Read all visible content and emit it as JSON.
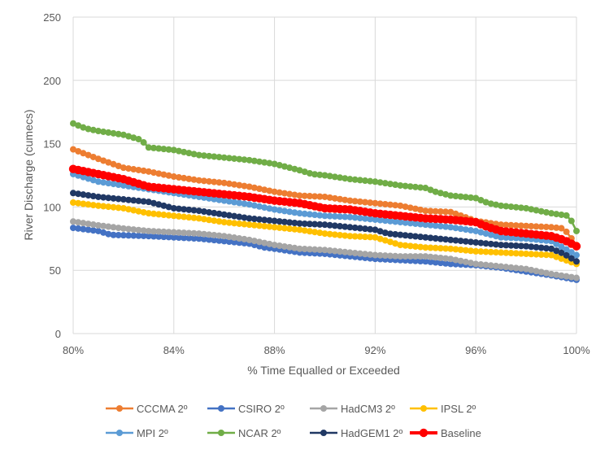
{
  "chart_data": {
    "type": "line",
    "title": "",
    "xlabel": "% Time Equalled or Exceeded",
    "ylabel": "River Discharge (cumecs)",
    "xlim": [
      80,
      100
    ],
    "ylim": [
      0,
      250
    ],
    "x_ticks": [
      80,
      84,
      88,
      92,
      96,
      100
    ],
    "x_tick_labels": [
      "80%",
      "84%",
      "88%",
      "92%",
      "96%",
      "100%"
    ],
    "y_ticks": [
      0,
      50,
      100,
      150,
      200,
      250
    ],
    "y_tick_labels": [
      "0",
      "50",
      "100",
      "150",
      "200",
      "250"
    ],
    "grid": true,
    "legend_position": "bottom",
    "points_per_series": 101,
    "series": [
      {
        "name": "CCCMA 2º",
        "color": "#ED7D31",
        "size": "normal",
        "anchors": [
          [
            80,
            145.5
          ],
          [
            81,
            138
          ],
          [
            82,
            131
          ],
          [
            83,
            128
          ],
          [
            84,
            124
          ],
          [
            85,
            121
          ],
          [
            86,
            119
          ],
          [
            87,
            116
          ],
          [
            88,
            112
          ],
          [
            89,
            109
          ],
          [
            90,
            108
          ],
          [
            91,
            105
          ],
          [
            92,
            103
          ],
          [
            93,
            101
          ],
          [
            94,
            97
          ],
          [
            95,
            96
          ],
          [
            96,
            89
          ],
          [
            97,
            86
          ],
          [
            98,
            85
          ],
          [
            99,
            84
          ],
          [
            99.5,
            83
          ],
          [
            100,
            70
          ]
        ]
      },
      {
        "name": "CSIRO 2º",
        "color": "#4472C4",
        "size": "normal",
        "anchors": [
          [
            80,
            83.5
          ],
          [
            81,
            81
          ],
          [
            81.5,
            78
          ],
          [
            83,
            77
          ],
          [
            84,
            76
          ],
          [
            85,
            75
          ],
          [
            86,
            73
          ],
          [
            87,
            71
          ],
          [
            87.6,
            68
          ],
          [
            88,
            67
          ],
          [
            89,
            64
          ],
          [
            90,
            63
          ],
          [
            91,
            61
          ],
          [
            92,
            59
          ],
          [
            93,
            58
          ],
          [
            94,
            57
          ],
          [
            95,
            55
          ],
          [
            96,
            54
          ],
          [
            97,
            52
          ],
          [
            98,
            49
          ],
          [
            99,
            46
          ],
          [
            100,
            42.5
          ]
        ]
      },
      {
        "name": "HadCM3 2º",
        "color": "#A5A5A5",
        "size": "normal",
        "anchors": [
          [
            80,
            88.5
          ],
          [
            81,
            85.5
          ],
          [
            82,
            83
          ],
          [
            83,
            81
          ],
          [
            84,
            80
          ],
          [
            85,
            79
          ],
          [
            86,
            77
          ],
          [
            87,
            74
          ],
          [
            88,
            70
          ],
          [
            89,
            67
          ],
          [
            90,
            66
          ],
          [
            91,
            64
          ],
          [
            92,
            62
          ],
          [
            93,
            61
          ],
          [
            94,
            61
          ],
          [
            95,
            59
          ],
          [
            96,
            55
          ],
          [
            97,
            53
          ],
          [
            98,
            51
          ],
          [
            99,
            47
          ],
          [
            100,
            44
          ]
        ]
      },
      {
        "name": "IPSL 2º",
        "color": "#FFC000",
        "size": "normal",
        "anchors": [
          [
            80,
            103.5
          ],
          [
            81,
            101
          ],
          [
            82,
            99
          ],
          [
            83,
            95
          ],
          [
            84,
            93
          ],
          [
            85,
            91
          ],
          [
            86,
            88
          ],
          [
            87,
            86
          ],
          [
            88,
            84
          ],
          [
            89,
            82
          ],
          [
            90,
            79
          ],
          [
            91,
            77
          ],
          [
            92,
            76
          ],
          [
            93,
            70
          ],
          [
            94,
            68
          ],
          [
            95,
            67
          ],
          [
            96,
            65
          ],
          [
            97,
            64
          ],
          [
            98,
            63
          ],
          [
            99,
            62
          ],
          [
            100,
            55
          ]
        ]
      },
      {
        "name": "MPI  2º",
        "color": "#5B9BD5",
        "size": "normal",
        "anchors": [
          [
            80,
            126
          ],
          [
            81,
            120
          ],
          [
            82,
            117
          ],
          [
            83,
            114
          ],
          [
            84,
            111
          ],
          [
            85,
            108
          ],
          [
            86,
            105
          ],
          [
            87,
            102
          ],
          [
            88,
            98
          ],
          [
            89,
            95
          ],
          [
            90,
            93
          ],
          [
            91,
            92
          ],
          [
            92,
            90
          ],
          [
            93,
            88
          ],
          [
            94,
            86
          ],
          [
            95,
            84
          ],
          [
            96,
            81
          ],
          [
            97,
            76
          ],
          [
            98,
            75
          ],
          [
            99,
            73
          ],
          [
            100,
            62
          ]
        ]
      },
      {
        "name": "NCAR 2º",
        "color": "#70AD47",
        "size": "normal",
        "anchors": [
          [
            80,
            166
          ],
          [
            80.5,
            162
          ],
          [
            81,
            160
          ],
          [
            82,
            157
          ],
          [
            82.7,
            153
          ],
          [
            83,
            147
          ],
          [
            84,
            145
          ],
          [
            85,
            141
          ],
          [
            86,
            139
          ],
          [
            87,
            137
          ],
          [
            88,
            134
          ],
          [
            89,
            129
          ],
          [
            89.5,
            126
          ],
          [
            90,
            125
          ],
          [
            91,
            122
          ],
          [
            92,
            120
          ],
          [
            93,
            117
          ],
          [
            94,
            115
          ],
          [
            94.4,
            112
          ],
          [
            95,
            109
          ],
          [
            96,
            107
          ],
          [
            96.5,
            103
          ],
          [
            97,
            101
          ],
          [
            98,
            99
          ],
          [
            99,
            95
          ],
          [
            99.7,
            93
          ],
          [
            100,
            81
          ]
        ]
      },
      {
        "name": "HadGEM1 2º",
        "color": "#203864",
        "size": "normal",
        "anchors": [
          [
            80,
            111
          ],
          [
            81,
            108
          ],
          [
            82,
            106
          ],
          [
            83,
            104
          ],
          [
            84,
            99
          ],
          [
            85,
            97
          ],
          [
            86,
            94
          ],
          [
            87,
            91
          ],
          [
            88,
            89
          ],
          [
            89,
            87
          ],
          [
            90,
            86
          ],
          [
            91,
            84
          ],
          [
            92,
            82
          ],
          [
            92.5,
            79
          ],
          [
            93,
            78
          ],
          [
            94,
            76
          ],
          [
            95,
            74
          ],
          [
            96,
            72
          ],
          [
            97,
            70
          ],
          [
            98,
            69
          ],
          [
            99,
            67
          ],
          [
            99.5,
            63
          ],
          [
            100,
            57
          ]
        ]
      },
      {
        "name": "Baseline",
        "color": "#FF0000",
        "size": "large",
        "anchors": [
          [
            80,
            130
          ],
          [
            81,
            126
          ],
          [
            82,
            122
          ],
          [
            83,
            116
          ],
          [
            84,
            114
          ],
          [
            85,
            112
          ],
          [
            86,
            110
          ],
          [
            87,
            108
          ],
          [
            88,
            105
          ],
          [
            89,
            103
          ],
          [
            89.5,
            101
          ],
          [
            90,
            99
          ],
          [
            91,
            98
          ],
          [
            92,
            95
          ],
          [
            93,
            93
          ],
          [
            94,
            91
          ],
          [
            95,
            90
          ],
          [
            96,
            88
          ],
          [
            96.5,
            84
          ],
          [
            97,
            81
          ],
          [
            98,
            79
          ],
          [
            99,
            77
          ],
          [
            99.5,
            74
          ],
          [
            100,
            69
          ]
        ]
      }
    ],
    "legend_rows": [
      [
        "CCCMA 2º",
        "CSIRO 2º",
        "HadCM3 2º",
        "IPSL 2º"
      ],
      [
        "MPI  2º",
        "NCAR 2º",
        "HadGEM1 2º",
        "Baseline"
      ]
    ]
  }
}
